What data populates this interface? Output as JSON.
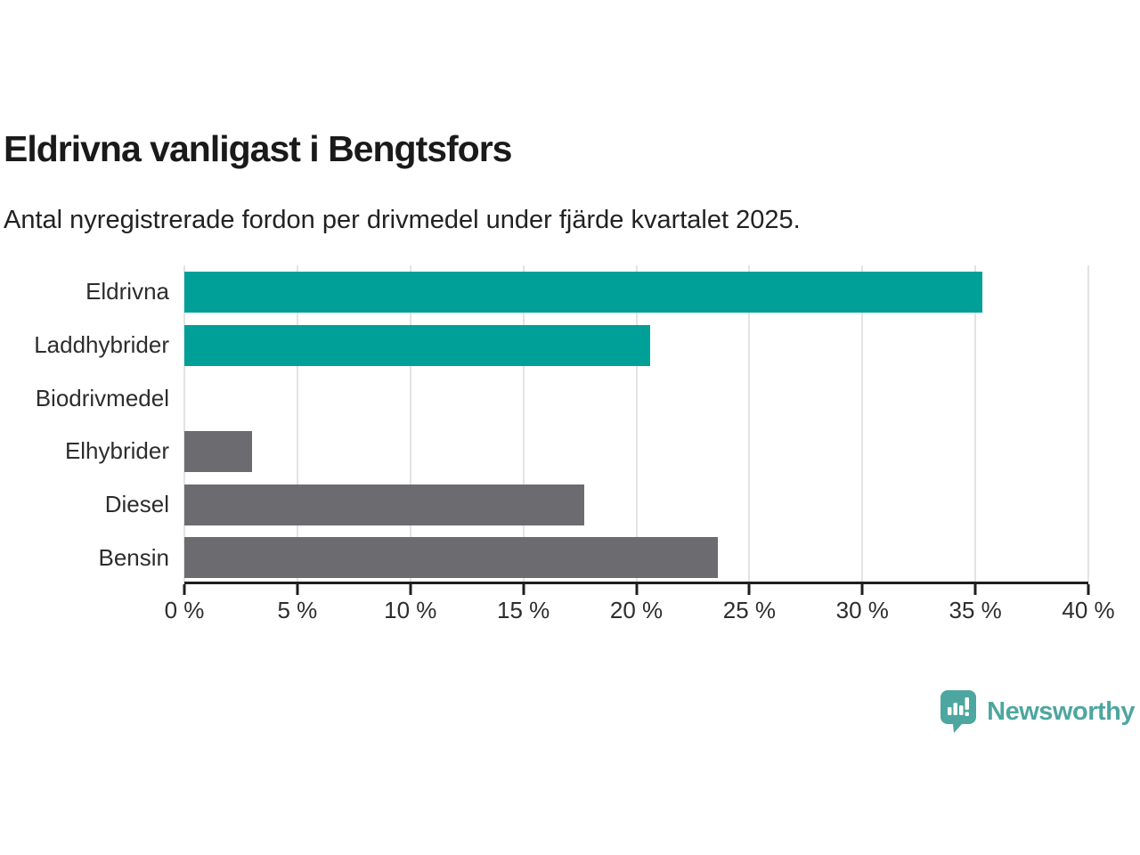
{
  "header": {
    "title": "Eldrivna vanligast i Bengtsfors",
    "subtitle": "Antal nyregistrerade fordon per drivmedel under fjärde kvartalet 2025."
  },
  "chart_data": {
    "type": "bar",
    "orientation": "horizontal",
    "title": "Eldrivna vanligast i Bengtsfors",
    "subtitle": "Antal nyregistrerade fordon per drivmedel under fjärde kvartalet 2025.",
    "categories": [
      "Eldrivna",
      "Laddhybrider",
      "Biodrivmedel",
      "Elhybrider",
      "Diesel",
      "Bensin"
    ],
    "values": [
      35.3,
      20.6,
      0,
      3.0,
      17.7,
      23.6
    ],
    "unit": "%",
    "bar_colors": [
      "#00a099",
      "#00a099",
      "#6b6b70",
      "#6b6b70",
      "#6b6b70",
      "#6b6b70"
    ],
    "xlabel": "",
    "ylabel": "",
    "xlim": [
      0,
      40
    ],
    "x_ticks": [
      0,
      5,
      10,
      15,
      20,
      25,
      30,
      35,
      40
    ],
    "x_tick_labels": [
      "0 %",
      "5 %",
      "10 %",
      "15 %",
      "20 %",
      "25 %",
      "30 %",
      "35 %",
      "40 %"
    ],
    "grid": "vertical-gridlines-on",
    "legend": "none"
  },
  "branding": {
    "logo_text": "Newsworthy",
    "logo_icon": "bar-chart-speech-bubble",
    "logo_color": "#4da6a0"
  },
  "colors": {
    "teal_bar": "#00a099",
    "gray_bar": "#6b6b70",
    "gridline": "#e3e3e3",
    "axis": "#1f1f1f",
    "text": "#2d2d2d",
    "background": "#ffffff"
  }
}
